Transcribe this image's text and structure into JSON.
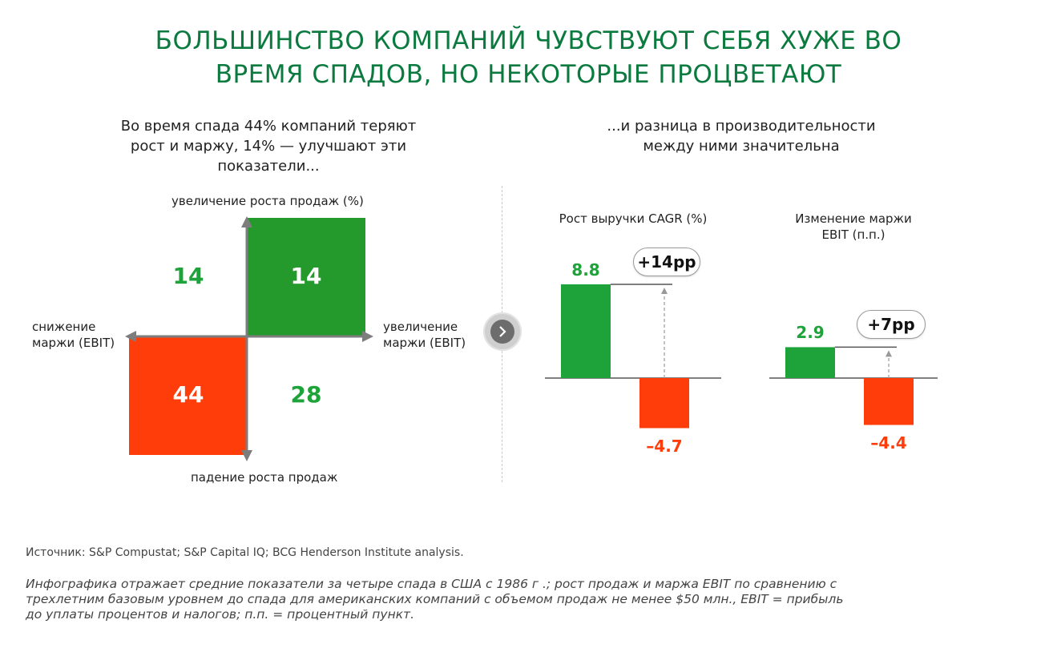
{
  "title": {
    "line1": "БОЛЬШИНСТВО КОМПАНИЙ ЧУВСТВУЮТ СЕБЯ ХУЖЕ ВО",
    "line2": "ВРЕМЯ СПАДОВ, НО НЕКОТОРЫЕ ПРОЦВЕТАЮТ"
  },
  "left_panel": {
    "heading_lines": [
      "Во время спада 44% компаний теряют",
      "рост и маржу, 14% — улучшают эти",
      "показатели..."
    ],
    "axis_top": "увеличение роста продаж (%)",
    "axis_bottom": "падение роста продаж",
    "axis_left_lines": [
      "снижение",
      "маржи (EBIT)"
    ],
    "axis_right_lines": [
      "увеличение",
      "маржи (EBIT)"
    ]
  },
  "right_panel": {
    "heading_lines": [
      "...и разница в производительности",
      "между ними значительна"
    ]
  },
  "colors": {
    "title_green": "#0b7a3e",
    "green": "#1ea23a",
    "square_green": "#249a2d",
    "red": "#ff3d0a"
  },
  "source": "Источник: S&P Compustat; S&P Capital IQ; BCG Henderson Institute analysis.",
  "note_lines": [
    "Инфографика отражает средние показатели за четыре спада в США с 1986 г .; рост продаж и маржа EBIT по сравнению с",
    "трехлетним базовым уровнем до спада для американских компаний с объемом продаж не менее $50 млн., EBIT = прибыль",
    "до уплаты процентов и налогов; п.п. = процентный пункт."
  ],
  "icons": {
    "nav": "chevron-right-icon"
  },
  "chart_data": [
    {
      "type": "table",
      "title": "",
      "quadrants": [
        {
          "position": "top-left",
          "value": 14,
          "filled": false
        },
        {
          "position": "top-right",
          "value": 14,
          "filled": true,
          "color": "#249a2d"
        },
        {
          "position": "bottom-left",
          "value": 44,
          "filled": true,
          "color": "#ff3d0a"
        },
        {
          "position": "bottom-right",
          "value": 28,
          "filled": false
        }
      ],
      "xlabel_negative": "снижение маржи (EBIT)",
      "xlabel_positive": "увеличение маржи (EBIT)",
      "ylabel_positive": "увеличение роста продаж (%)",
      "ylabel_negative": "падение роста продаж"
    },
    {
      "type": "bar",
      "title": "Рост выручки CAGR (%)",
      "values": [
        8.8,
        -4.7
      ],
      "labels": [
        "8.8",
        "–4.7"
      ],
      "bar_colors": [
        "#1ea23a",
        "#ff3d0a"
      ],
      "difference_label": "+14pp",
      "ylim": [
        -6,
        10
      ]
    },
    {
      "type": "bar",
      "title_lines": [
        "Изменение маржи",
        "EBIT (п.п.)"
      ],
      "values": [
        2.9,
        -4.4
      ],
      "labels": [
        "2.9",
        "–4.4"
      ],
      "bar_colors": [
        "#1ea23a",
        "#ff3d0a"
      ],
      "difference_label": "+7pp",
      "ylim": [
        -6,
        10
      ]
    }
  ]
}
